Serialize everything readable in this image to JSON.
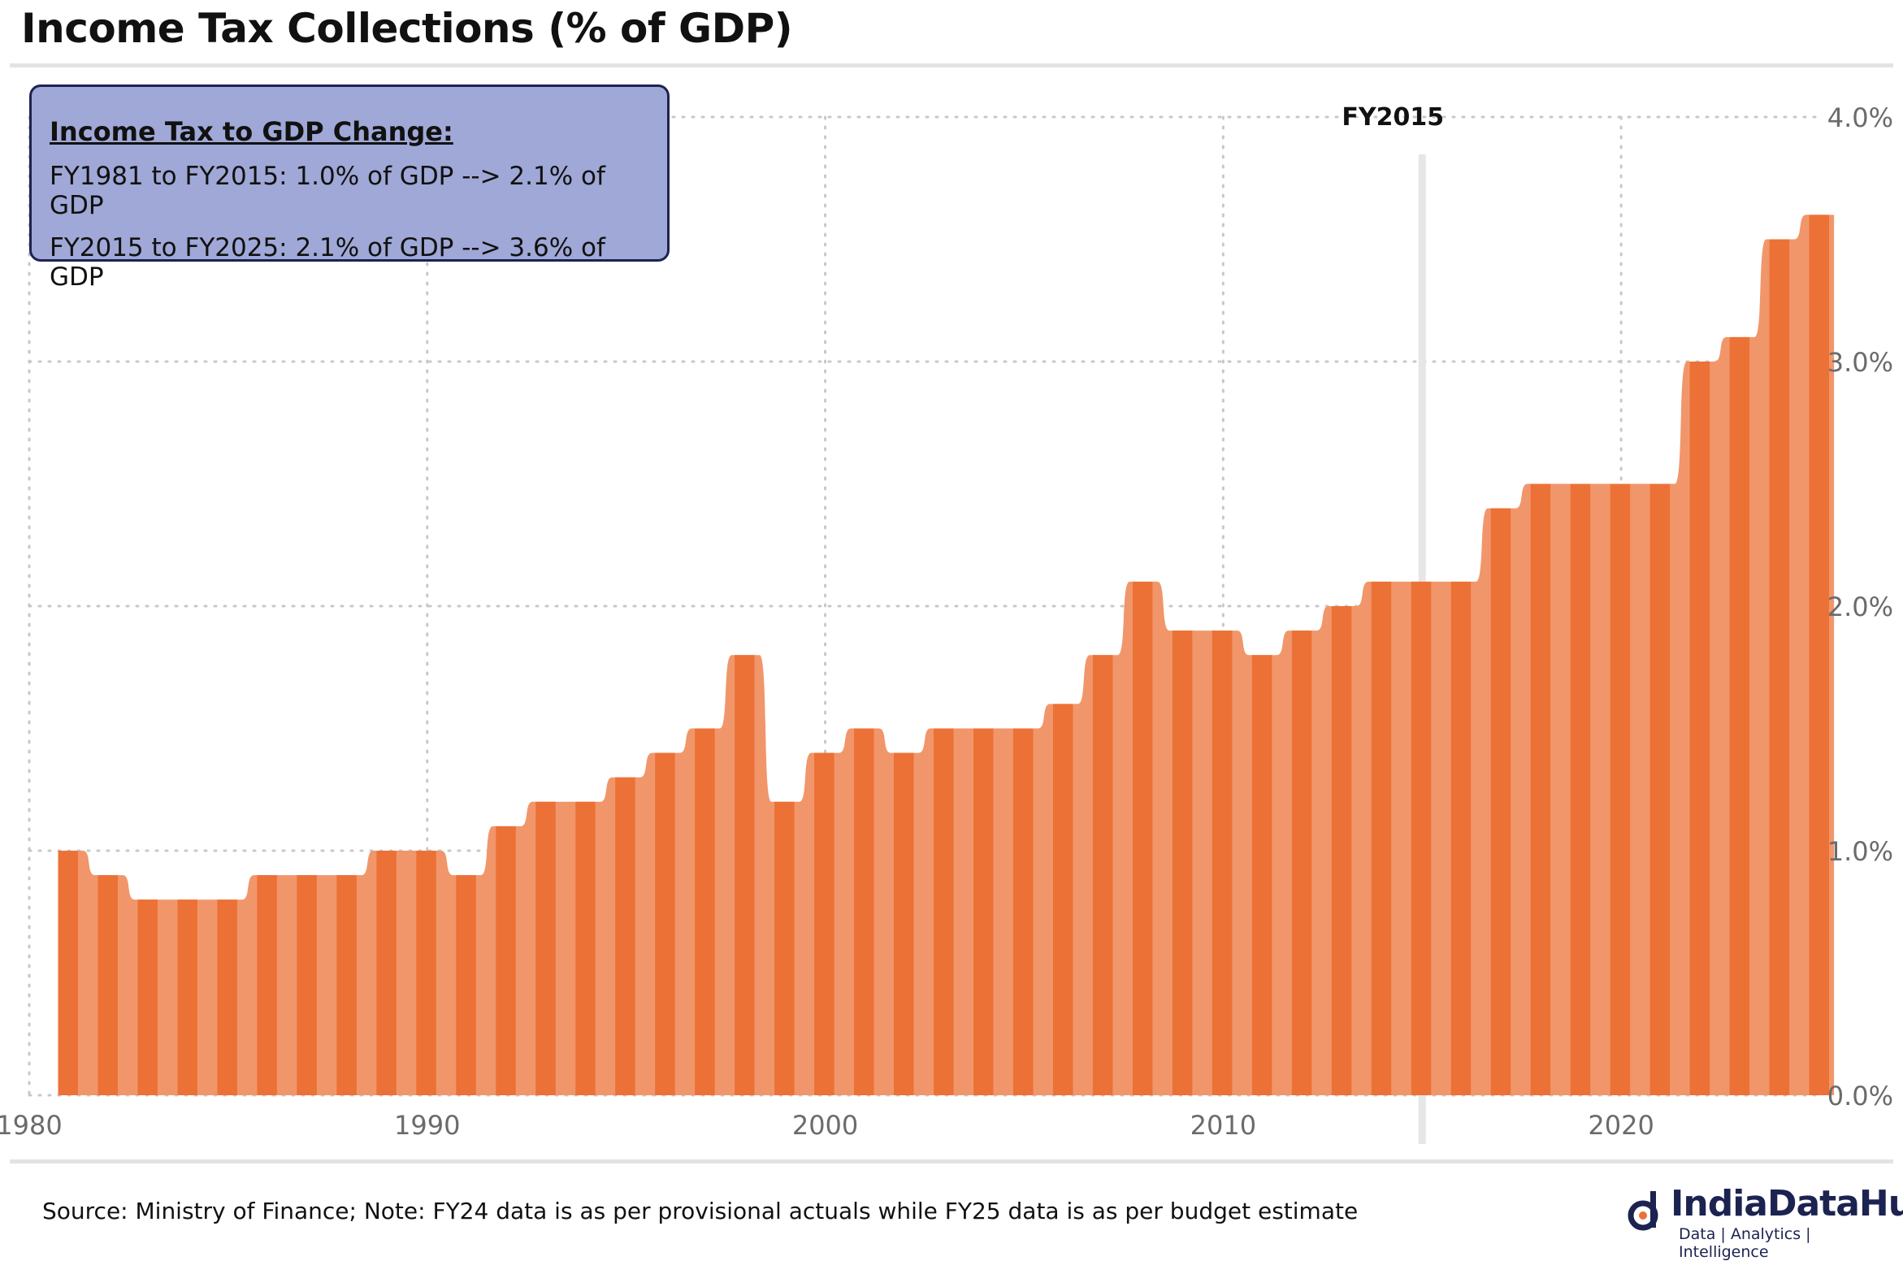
{
  "page": {
    "title": "Income Tax Collections (% of GDP)",
    "source_note": "Source: Ministry of Finance; Note: FY24 data is as per provisional actuals while FY25 data is as per budget estimate"
  },
  "infobox": {
    "heading": "Income Tax to GDP Change:",
    "line1": "FY1981 to FY2015: 1.0% of GDP --> 2.1% of GDP",
    "line2": "FY2015 to FY2025: 2.1% of GDP --> 3.6% of GDP"
  },
  "logo": {
    "name": "IndiaDataHub",
    "tagline": "Data | Analytics | Intelligence",
    "icon": "indiadatahub-logo-icon"
  },
  "colors": {
    "bar_dark": "#ec7136",
    "bar_light": "#f1966a",
    "grid": "#c8c8c8",
    "marker_line": "#e6e6e6",
    "axis_text": "#6b6b6b",
    "infobox_fill": "#9fa8d6",
    "infobox_border": "#1c2350"
  },
  "chart_data": {
    "type": "bar",
    "title": "Income Tax Collections (% of GDP)",
    "xlabel": "",
    "ylabel": "",
    "x": [
      1981,
      1982,
      1983,
      1984,
      1985,
      1986,
      1987,
      1988,
      1989,
      1990,
      1991,
      1992,
      1993,
      1994,
      1995,
      1996,
      1997,
      1998,
      1999,
      2000,
      2001,
      2002,
      2003,
      2004,
      2005,
      2006,
      2007,
      2008,
      2009,
      2010,
      2011,
      2012,
      2013,
      2014,
      2015,
      2016,
      2017,
      2018,
      2019,
      2020,
      2021,
      2022,
      2023,
      2024,
      2025
    ],
    "values": [
      1.0,
      0.9,
      0.8,
      0.8,
      0.8,
      0.9,
      0.9,
      0.9,
      1.0,
      1.0,
      0.9,
      1.1,
      1.2,
      1.2,
      1.3,
      1.4,
      1.5,
      1.8,
      1.2,
      1.4,
      1.5,
      1.4,
      1.5,
      1.5,
      1.5,
      1.6,
      1.8,
      2.1,
      1.9,
      1.9,
      1.8,
      1.9,
      2.0,
      2.1,
      2.1,
      2.1,
      2.4,
      2.5,
      2.5,
      2.5,
      2.5,
      3.0,
      3.1,
      3.5,
      3.6
    ],
    "xlim": [
      1980,
      2025
    ],
    "ylim": [
      0,
      4.0
    ],
    "x_ticks": [
      "1980",
      "1990",
      "2000",
      "2010",
      "2020"
    ],
    "y_ticks": [
      "0.0%",
      "1.0%",
      "2.0%",
      "3.0%",
      "4.0%"
    ],
    "y_axis_side": "right",
    "grid": true,
    "annotation": {
      "x": 2015,
      "label": "FY2015"
    }
  }
}
